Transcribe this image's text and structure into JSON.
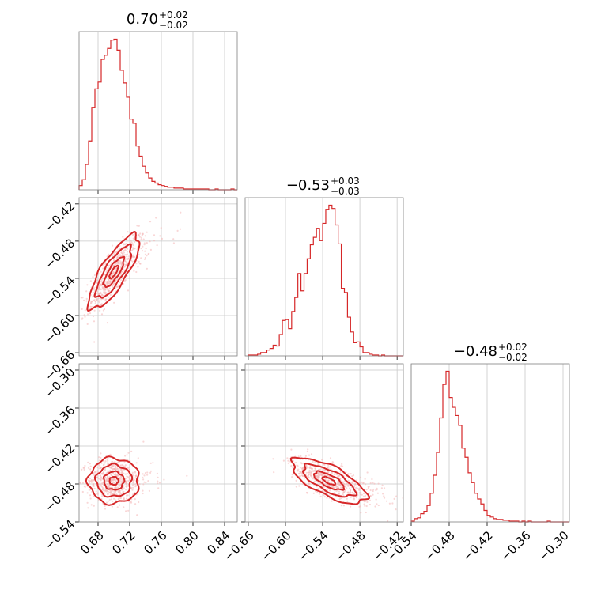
{
  "colors": {
    "series": "#d62728",
    "scatter": "#f4b6b7",
    "fill_light": "#f7c9ca",
    "fill_mid": "#ec8f91",
    "fill_dark": "#d62728"
  },
  "chart_data": {
    "type": "corner",
    "panels": [
      {
        "id": "hist-p1",
        "type": "histogram",
        "title": {
          "main": "0.70",
          "sup": "+0.02",
          "sub": "−0.02"
        },
        "x": [
          0.658,
          0.662,
          0.666,
          0.67,
          0.674,
          0.678,
          0.682,
          0.686,
          0.69,
          0.694,
          0.698,
          0.702,
          0.706,
          0.71,
          0.714,
          0.718,
          0.722,
          0.726,
          0.73,
          0.734,
          0.738,
          0.742,
          0.746,
          0.75,
          0.754,
          0.758,
          0.762,
          0.766,
          0.77,
          0.774,
          0.778,
          0.782,
          0.786,
          0.79,
          0.794,
          0.798,
          0.802,
          0.806,
          0.81,
          0.814,
          0.818,
          0.822,
          0.826,
          0.83,
          0.834,
          0.838,
          0.842,
          0.846,
          0.85,
          0.854
        ],
        "y": [
          5,
          12,
          30,
          58,
          98,
          120,
          128,
          155,
          160,
          168,
          178,
          179,
          166,
          142,
          127,
          110,
          84,
          79,
          52,
          40,
          28,
          20,
          14,
          10,
          8,
          6,
          5,
          4,
          3,
          3,
          2,
          2,
          2,
          1,
          1,
          1,
          1,
          1,
          1,
          1,
          1,
          0,
          0,
          1,
          0,
          0,
          0,
          0,
          1,
          0
        ],
        "xlim": [
          0.656,
          0.856
        ],
        "ticks": [
          0.68,
          0.72,
          0.76,
          0.8,
          0.84
        ]
      },
      {
        "id": "hist-p2",
        "type": "histogram",
        "title": {
          "main": "−0.53",
          "sup": "+0.03",
          "sub": "−0.03"
        },
        "x": [
          -0.6575,
          -0.6525,
          -0.6475,
          -0.6425,
          -0.6375,
          -0.6325,
          -0.6275,
          -0.6225,
          -0.6175,
          -0.6125,
          -0.6075,
          -0.6025,
          -0.5975,
          -0.5925,
          -0.5875,
          -0.5825,
          -0.5775,
          -0.5725,
          -0.5675,
          -0.5625,
          -0.5575,
          -0.5525,
          -0.5475,
          -0.5425,
          -0.5375,
          -0.5325,
          -0.5275,
          -0.5225,
          -0.5175,
          -0.5125,
          -0.5075,
          -0.5025,
          -0.4975,
          -0.4925,
          -0.4875,
          -0.4825,
          -0.4775,
          -0.4725,
          -0.4675,
          -0.4625,
          -0.4575,
          -0.4525,
          -0.4475,
          -0.4425,
          -0.4375,
          -0.4325,
          -0.4275,
          -0.4225,
          -0.4175,
          -0.4125
        ],
        "y": [
          1,
          1,
          1,
          2,
          4,
          4,
          7,
          9,
          13,
          12,
          26,
          43,
          44,
          33,
          54,
          71,
          100,
          79,
          100,
          118,
          135,
          144,
          155,
          140,
          161,
          178,
          183,
          179,
          159,
          136,
          82,
          77,
          47,
          29,
          16,
          17,
          11,
          4,
          4,
          2,
          1,
          1,
          0,
          1,
          0,
          0,
          0,
          0,
          0,
          0
        ],
        "xlim": [
          -0.665,
          -0.41
        ],
        "ticks": [
          -0.66,
          -0.6,
          -0.54,
          -0.48,
          -0.42
        ]
      },
      {
        "id": "hist-p3",
        "type": "histogram",
        "title": {
          "main": "−0.48",
          "sup": "+0.02",
          "sub": "−0.02"
        },
        "x": [
          -0.5375,
          -0.5325,
          -0.5275,
          -0.5225,
          -0.5175,
          -0.5125,
          -0.5075,
          -0.5025,
          -0.4975,
          -0.4925,
          -0.4875,
          -0.4825,
          -0.4775,
          -0.4725,
          -0.4675,
          -0.4625,
          -0.4575,
          -0.4525,
          -0.4475,
          -0.4425,
          -0.4375,
          -0.4325,
          -0.4275,
          -0.4225,
          -0.4175,
          -0.4125,
          -0.4075,
          -0.4025,
          -0.3975,
          -0.3925,
          -0.3875,
          -0.3825,
          -0.3775,
          -0.3725,
          -0.3675,
          -0.3625,
          -0.3575,
          -0.3525,
          -0.3475,
          -0.3425,
          -0.3375,
          -0.3325,
          -0.3275,
          -0.3225,
          -0.3175,
          -0.3125,
          -0.3075,
          -0.3025,
          -0.2975,
          -0.2925
        ],
        "y": [
          1,
          4,
          5,
          10,
          13,
          20,
          35,
          57,
          85,
          127,
          168,
          184,
          152,
          140,
          130,
          118,
          90,
          79,
          60,
          48,
          35,
          28,
          22,
          14,
          8,
          6,
          4,
          3,
          3,
          2,
          2,
          1,
          1,
          1,
          0,
          1,
          0,
          1,
          0,
          0,
          0,
          0,
          0,
          1,
          0,
          0,
          0,
          0,
          0,
          0
        ],
        "xlim": [
          -0.54,
          -0.29
        ],
        "ticks": [
          -0.54,
          -0.48,
          -0.42,
          -0.36,
          -0.3
        ]
      },
      {
        "id": "joint-p1-p2",
        "type": "joint",
        "center": [
          0.7,
          -0.53
        ],
        "sd": [
          0.016,
          0.03
        ],
        "corr": 0.8,
        "xlim": [
          0.656,
          0.856
        ],
        "ylim": [
          -0.665,
          -0.41
        ],
        "xticks": [
          0.68,
          0.72,
          0.76,
          0.8,
          0.84
        ],
        "yticks": [
          -0.66,
          -0.6,
          -0.54,
          -0.48,
          -0.42
        ]
      },
      {
        "id": "joint-p1-p3",
        "type": "joint",
        "center": [
          0.7,
          -0.475
        ],
        "sd": [
          0.016,
          0.018
        ],
        "corr": 0.0,
        "xlim": [
          0.656,
          0.856
        ],
        "ylim": [
          -0.54,
          -0.29
        ],
        "xticks": [
          0.68,
          0.72,
          0.76,
          0.8,
          0.84
        ],
        "yticks": [
          -0.54,
          -0.48,
          -0.42,
          -0.36,
          -0.3
        ]
      },
      {
        "id": "joint-p2-p3",
        "type": "joint",
        "center": [
          -0.53,
          -0.475
        ],
        "sd": [
          0.03,
          0.018
        ],
        "corr": -0.7,
        "xlim": [
          -0.665,
          -0.41
        ],
        "ylim": [
          -0.54,
          -0.29
        ],
        "xticks": [
          -0.66,
          -0.6,
          -0.54,
          -0.48,
          -0.42
        ],
        "yticks": [
          -0.54,
          -0.48,
          -0.42,
          -0.36,
          -0.3
        ]
      }
    ],
    "tick_labels": {
      "p1": [
        "0.68",
        "0.72",
        "0.76",
        "0.80",
        "0.84"
      ],
      "p2": [
        "−0.66",
        "−0.60",
        "−0.54",
        "−0.48",
        "−0.42"
      ],
      "p3": [
        "−0.54",
        "−0.48",
        "−0.42",
        "−0.36",
        "−0.30"
      ]
    },
    "grid": true
  }
}
